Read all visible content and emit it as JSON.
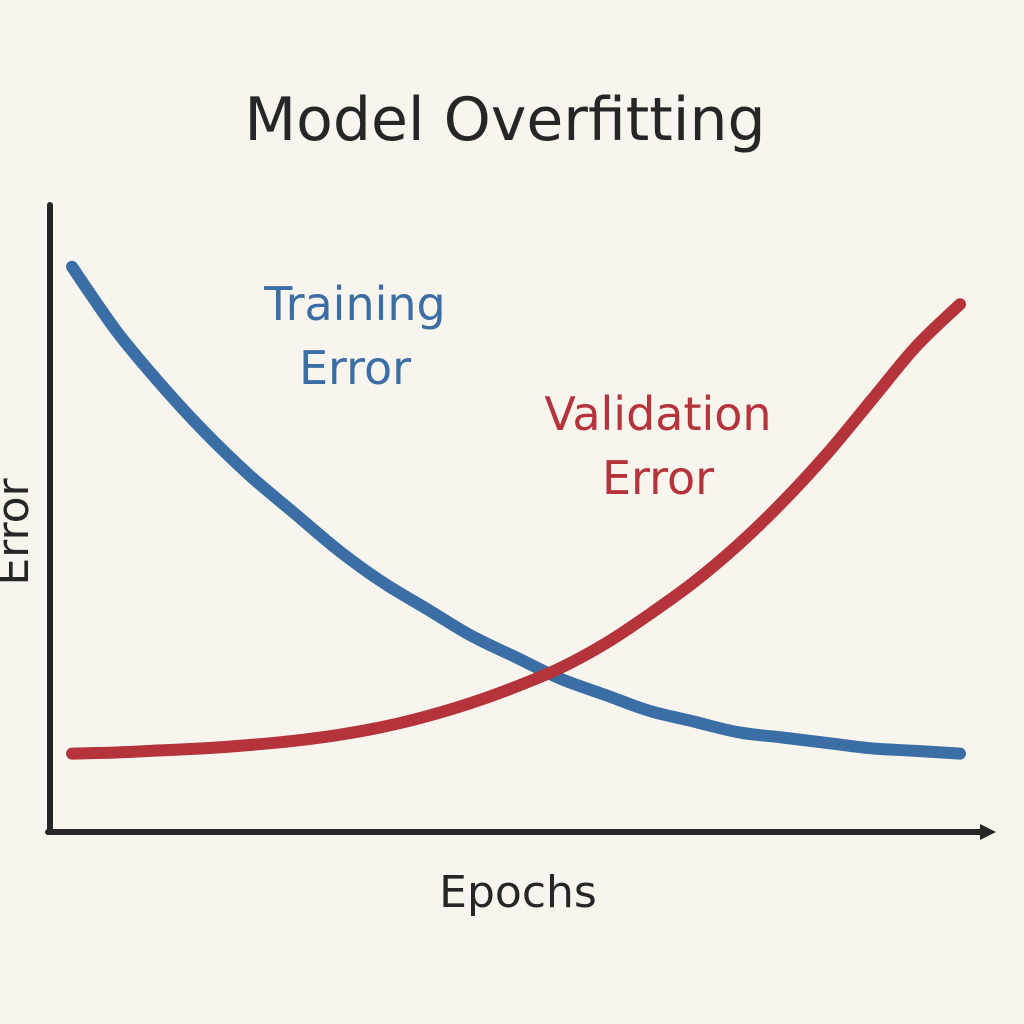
{
  "chart_data": {
    "type": "line",
    "title": "Model Overfitting",
    "xlabel": "Epochs",
    "ylabel": "Error",
    "grid": false,
    "legend": "inline labels",
    "series": [
      {
        "name": "Training Error",
        "label_lines": [
          "Training",
          "Error"
        ],
        "color": "#3a6ea5",
        "x": [
          0,
          0.05,
          0.1,
          0.15,
          0.2,
          0.25,
          0.3,
          0.35,
          0.4,
          0.45,
          0.5,
          0.55,
          0.6,
          0.65,
          0.7,
          0.75,
          0.8,
          0.85,
          0.9,
          0.95,
          1.0
        ],
        "values": [
          0.95,
          0.83,
          0.73,
          0.64,
          0.56,
          0.49,
          0.42,
          0.36,
          0.31,
          0.26,
          0.22,
          0.18,
          0.15,
          0.12,
          0.1,
          0.08,
          0.07,
          0.06,
          0.05,
          0.045,
          0.04
        ]
      },
      {
        "name": "Validation Error",
        "label_lines": [
          "Validation",
          "Error"
        ],
        "color": "#b5343c",
        "x": [
          0,
          0.05,
          0.1,
          0.15,
          0.2,
          0.25,
          0.3,
          0.35,
          0.4,
          0.45,
          0.5,
          0.55,
          0.6,
          0.65,
          0.7,
          0.75,
          0.8,
          0.85,
          0.9,
          0.95,
          1.0
        ],
        "values": [
          0.04,
          0.042,
          0.046,
          0.05,
          0.056,
          0.064,
          0.075,
          0.09,
          0.11,
          0.135,
          0.165,
          0.2,
          0.245,
          0.3,
          0.36,
          0.43,
          0.51,
          0.6,
          0.7,
          0.8,
          0.88
        ]
      }
    ]
  }
}
